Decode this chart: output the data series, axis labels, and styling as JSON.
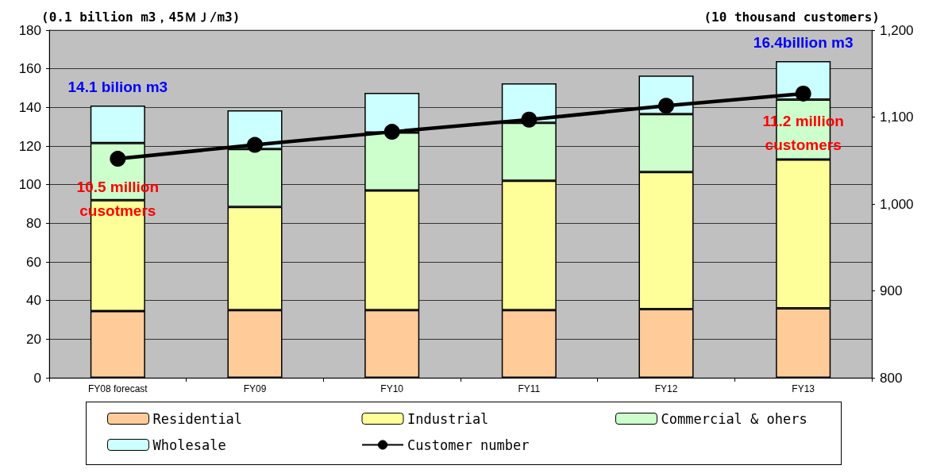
{
  "chart_data": {
    "type": "bar",
    "stacked": true,
    "categories": [
      "FY08 forecast",
      "FY09",
      "FY10",
      "FY11",
      "FY12",
      "FY13"
    ],
    "series": [
      {
        "name": "Residential",
        "color": "#ffcc99",
        "values": [
          34.5,
          35,
          35,
          35,
          35.5,
          36
        ]
      },
      {
        "name": "Industrial",
        "color": "#ffff99",
        "values": [
          57.5,
          53.5,
          62,
          67,
          71,
          77
        ]
      },
      {
        "name": "Commercial & ohers",
        "color": "#ccffcc",
        "values": [
          29.5,
          30,
          30,
          30,
          30,
          31
        ]
      },
      {
        "name": "Wholesale",
        "color": "#ccffff",
        "values": [
          19.5,
          20,
          20.5,
          20.5,
          20,
          20
        ]
      },
      {
        "name": "Customer number",
        "type": "line",
        "axis": "y2",
        "color": "#000000",
        "marker": "circle",
        "values": [
          1052,
          1068,
          1083,
          1097,
          1113,
          1127
        ]
      }
    ],
    "ylabel": "(0.1 billion m3，45ＭＪ/m3)",
    "y2label": "(10 thousand customers)",
    "ylim": [
      0,
      180
    ],
    "yticks": [
      0,
      20,
      40,
      60,
      80,
      100,
      120,
      140,
      160,
      180
    ],
    "y2lim": [
      800,
      1200
    ],
    "y2ticks": [
      800,
      900,
      {
        "value": 1000,
        "label": "1,000"
      },
      {
        "value": 1100,
        "label": "1,100"
      },
      {
        "value": 1200,
        "label": "1,200"
      }
    ],
    "grid": "y",
    "legend": "bottom",
    "totals": [
      "14.1 bilion m3",
      null,
      null,
      null,
      null,
      "16.4billion m3"
    ],
    "annotations": [
      "10.5 million\ncusotmers",
      "11.2 million\ncustomers"
    ]
  }
}
